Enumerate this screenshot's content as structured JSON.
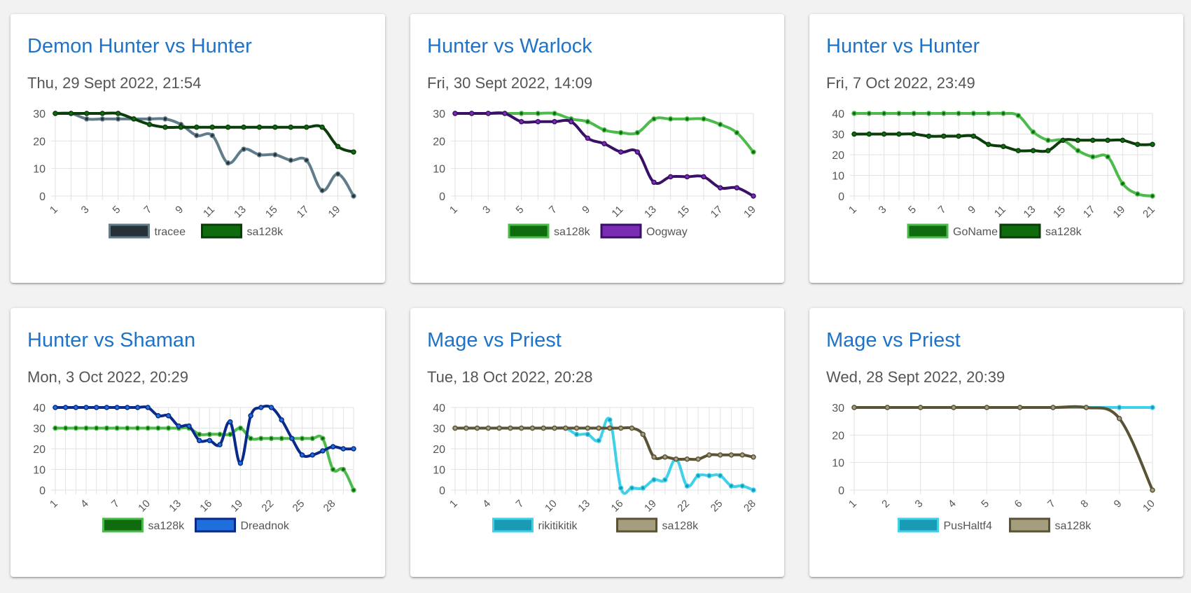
{
  "cards": [
    {
      "title": "Demon Hunter vs Hunter",
      "date": "Thu, 29 Sept 2022, 21:54",
      "chart_data": {
        "type": "line",
        "x": [
          1,
          2,
          3,
          4,
          5,
          6,
          7,
          8,
          9,
          10,
          11,
          12,
          13,
          14,
          15,
          16,
          17,
          18,
          19,
          20
        ],
        "xticks": [
          1,
          3,
          5,
          7,
          9,
          11,
          13,
          15,
          17,
          19
        ],
        "ylim": [
          0,
          30
        ],
        "yticks": [
          0,
          10,
          20,
          30
        ],
        "series": [
          {
            "name": "tracee",
            "line_color": "#607d8b",
            "fill": "#263238",
            "values": [
              30,
              30,
              28,
              28,
              28,
              28,
              28,
              28,
              26,
              22,
              22,
              12,
              17,
              15,
              15,
              13,
              13,
              2,
              8,
              0
            ]
          },
          {
            "name": "sa128k",
            "line_color": "#0b3d0b",
            "fill": "#0e6b0e",
            "values": [
              30,
              30,
              30,
              30,
              30,
              28,
              26,
              25,
              25,
              25,
              25,
              25,
              25,
              25,
              25,
              25,
              25,
              25,
              18,
              16
            ]
          }
        ]
      }
    },
    {
      "title": "Hunter vs Warlock",
      "date": "Fri, 30 Sept 2022, 14:09",
      "chart_data": {
        "type": "line",
        "x": [
          1,
          2,
          3,
          4,
          5,
          6,
          7,
          8,
          9,
          10,
          11,
          12,
          13,
          14,
          15,
          16,
          17,
          18,
          19
        ],
        "xticks": [
          1,
          3,
          5,
          7,
          9,
          11,
          13,
          15,
          17,
          19
        ],
        "ylim": [
          0,
          30
        ],
        "yticks": [
          0,
          10,
          20,
          30
        ],
        "series": [
          {
            "name": "sa128k",
            "line_color": "#4cbb4c",
            "fill": "#0e6b0e",
            "values": [
              30,
              30,
              30,
              30,
              30,
              30,
              30,
              28,
              27,
              24,
              23,
              23,
              28,
              28,
              28,
              28,
              26,
              23,
              16
            ]
          },
          {
            "name": "Oogway",
            "line_color": "#3a1066",
            "fill": "#7b2cb5",
            "values": [
              30,
              30,
              30,
              30,
              27,
              27,
              27,
              27,
              21,
              19,
              16,
              16,
              5,
              7,
              7,
              7,
              3,
              3,
              0
            ]
          }
        ]
      }
    },
    {
      "title": "Hunter vs Hunter",
      "date": "Fri, 7 Oct 2022, 23:49",
      "chart_data": {
        "type": "line",
        "x": [
          1,
          2,
          3,
          4,
          5,
          6,
          7,
          8,
          9,
          10,
          11,
          12,
          13,
          14,
          15,
          16,
          17,
          18,
          19,
          20,
          21
        ],
        "xticks": [
          1,
          3,
          5,
          7,
          9,
          11,
          13,
          15,
          17,
          19,
          21
        ],
        "ylim": [
          0,
          40
        ],
        "yticks": [
          0,
          10,
          20,
          30,
          40
        ],
        "series": [
          {
            "name": "GoName",
            "line_color": "#4cbb4c",
            "fill": "#0e6b0e",
            "values": [
              40,
              40,
              40,
              40,
              40,
              40,
              40,
              40,
              40,
              40,
              40,
              39,
              31,
              27,
              27,
              22,
              19,
              19,
              6,
              1,
              0
            ]
          },
          {
            "name": "sa128k",
            "line_color": "#0b3d0b",
            "fill": "#0e6b0e",
            "values": [
              30,
              30,
              30,
              30,
              30,
              29,
              29,
              29,
              29,
              25,
              24,
              22,
              22,
              22,
              27,
              27,
              27,
              27,
              27,
              25,
              25
            ]
          }
        ]
      }
    },
    {
      "title": "Hunter vs Shaman",
      "date": "Mon, 3 Oct 2022, 20:29",
      "chart_data": {
        "type": "line",
        "x": [
          1,
          2,
          3,
          4,
          5,
          6,
          7,
          8,
          9,
          10,
          11,
          12,
          13,
          14,
          15,
          16,
          17,
          18,
          19,
          20,
          21,
          22,
          23,
          24,
          25,
          26,
          27,
          28,
          29,
          30
        ],
        "xticks": [
          1,
          4,
          7,
          10,
          13,
          16,
          19,
          22,
          25,
          28
        ],
        "ylim": [
          0,
          40
        ],
        "yticks": [
          0,
          10,
          20,
          30,
          40
        ],
        "series": [
          {
            "name": "sa128k",
            "line_color": "#4cbb4c",
            "fill": "#0e6b0e",
            "values": [
              30,
              30,
              30,
              30,
              30,
              30,
              30,
              30,
              30,
              30,
              30,
              30,
              30,
              30,
              27,
              27,
              27,
              27,
              30,
              25,
              25,
              25,
              25,
              25,
              25,
              25,
              25,
              10,
              10,
              0
            ]
          },
          {
            "name": "Dreadnok",
            "line_color": "#0a2a8a",
            "fill": "#1e6fdc",
            "values": [
              40,
              40,
              40,
              40,
              40,
              40,
              40,
              40,
              40,
              40,
              36,
              36,
              31,
              31,
              24,
              24,
              22,
              33,
              13,
              36,
              40,
              40,
              34,
              25,
              17,
              17,
              19,
              21,
              20,
              20
            ]
          }
        ]
      }
    },
    {
      "title": "Mage vs Priest",
      "date": "Tue, 18 Oct 2022, 20:28",
      "chart_data": {
        "type": "line",
        "x": [
          1,
          2,
          3,
          4,
          5,
          6,
          7,
          8,
          9,
          10,
          11,
          12,
          13,
          14,
          15,
          16,
          17,
          18,
          19,
          20,
          21,
          22,
          23,
          24,
          25,
          26,
          27,
          28
        ],
        "xticks": [
          1,
          4,
          7,
          10,
          13,
          16,
          19,
          22,
          25,
          28
        ],
        "ylim": [
          0,
          40
        ],
        "yticks": [
          0,
          10,
          20,
          30,
          40
        ],
        "series": [
          {
            "name": "rikitikitik",
            "line_color": "#3fd0ea",
            "fill": "#1a9bb5",
            "values": [
              30,
              30,
              30,
              30,
              30,
              30,
              30,
              30,
              30,
              30,
              30,
              27,
              27,
              24,
              34,
              1,
              1,
              1,
              5,
              5,
              15,
              2,
              7,
              7,
              7,
              2,
              2,
              0
            ]
          },
          {
            "name": "sa128k",
            "line_color": "#5a5235",
            "fill": "#a59e7e",
            "values": [
              30,
              30,
              30,
              30,
              30,
              30,
              30,
              30,
              30,
              30,
              30,
              30,
              30,
              30,
              30,
              30,
              30,
              27,
              16,
              16,
              15,
              15,
              15,
              17,
              17,
              17,
              17,
              16
            ]
          }
        ]
      }
    },
    {
      "title": "Mage vs Priest",
      "date": "Wed, 28 Sept 2022, 20:39",
      "chart_data": {
        "type": "line",
        "x": [
          1,
          2,
          3,
          4,
          5,
          6,
          7,
          8,
          9,
          10
        ],
        "xticks": [
          1,
          2,
          3,
          4,
          5,
          6,
          7,
          8,
          9,
          10
        ],
        "ylim": [
          0,
          30
        ],
        "yticks": [
          0,
          10,
          20,
          30
        ],
        "series": [
          {
            "name": "PusHaltf4",
            "line_color": "#3fd0ea",
            "fill": "#1a9bb5",
            "values": [
              30,
              30,
              30,
              30,
              30,
              30,
              30,
              30,
              30,
              30
            ]
          },
          {
            "name": "sa128k",
            "line_color": "#5a5235",
            "fill": "#a59e7e",
            "values": [
              30,
              30,
              30,
              30,
              30,
              30,
              30,
              30,
              26,
              0
            ]
          }
        ]
      }
    }
  ]
}
